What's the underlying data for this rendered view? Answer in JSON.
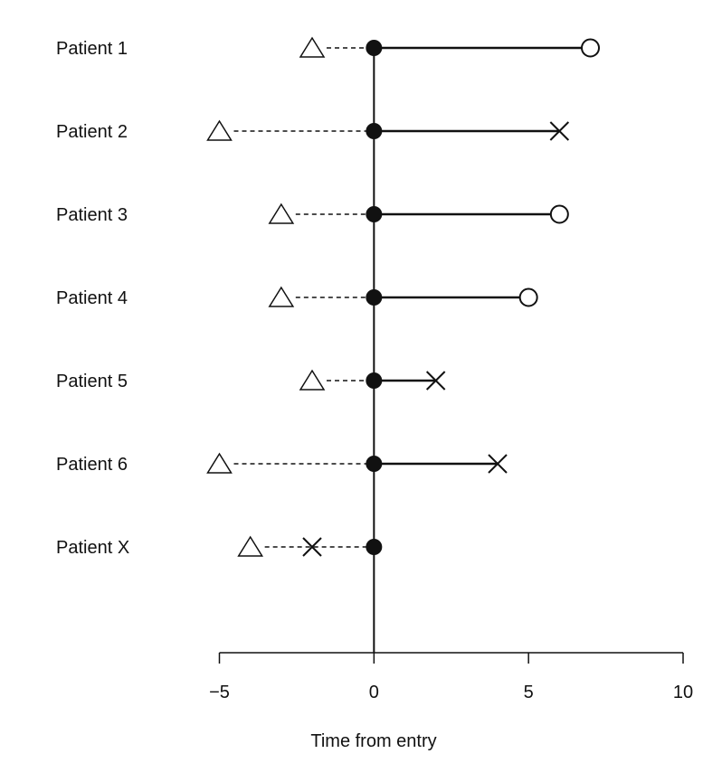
{
  "chart_data": {
    "type": "scatter",
    "title": "",
    "xlabel": "Time from entry",
    "ylabel": "",
    "xlim": [
      -5,
      10
    ],
    "xticks": [
      {
        "value": -5,
        "label": "−5"
      },
      {
        "value": 0,
        "label": "0"
      },
      {
        "value": 5,
        "label": "5"
      },
      {
        "value": 10,
        "label": "10"
      }
    ],
    "grid": false,
    "legend": "none",
    "markers": {
      "start": "triangle",
      "entry": "filled-circle",
      "event": "cross",
      "censored": "open-circle"
    },
    "patients": [
      {
        "label": "Patient 1",
        "start": -2,
        "entry": 0,
        "end": 7,
        "outcome": "censored"
      },
      {
        "label": "Patient 2",
        "start": -5,
        "entry": 0,
        "end": 6,
        "outcome": "event"
      },
      {
        "label": "Patient 3",
        "start": -3,
        "entry": 0,
        "end": 6,
        "outcome": "censored"
      },
      {
        "label": "Patient 4",
        "start": -3,
        "entry": 0,
        "end": 5,
        "outcome": "censored"
      },
      {
        "label": "Patient 5",
        "start": -2,
        "entry": 0,
        "end": 2,
        "outcome": "event"
      },
      {
        "label": "Patient 6",
        "start": -5,
        "entry": 0,
        "end": 4,
        "outcome": "event"
      },
      {
        "label": "Patient X",
        "start": -4,
        "entry": 0,
        "end": -2,
        "outcome": "event"
      }
    ]
  }
}
